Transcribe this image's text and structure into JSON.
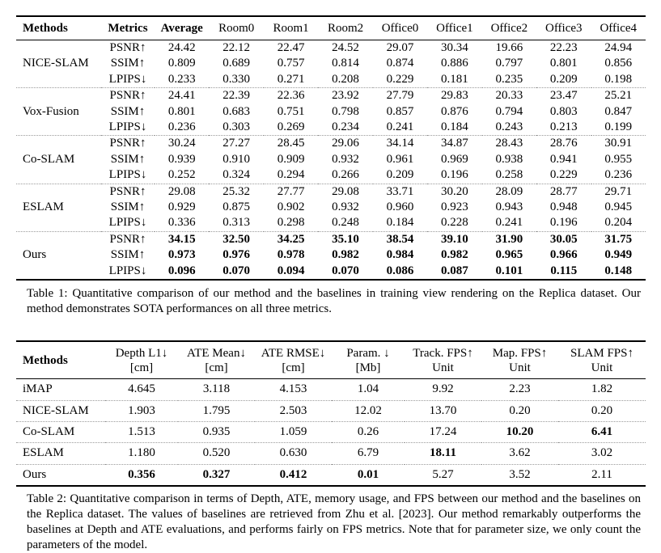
{
  "page": {
    "background": "#ffffff",
    "text_color": "#000000",
    "rule_color": "#000000",
    "dotted_rule_color": "#9a9a9a"
  },
  "chart_data": [
    {
      "type": "table",
      "title": "Table 1",
      "columns": [
        "Methods",
        "Metrics",
        "Average",
        "Room0",
        "Room1",
        "Room2",
        "Office0",
        "Office1",
        "Office2",
        "Office3",
        "Office4"
      ],
      "note": "rows grouped by method, three metric rows each; Ours values bold"
    },
    {
      "type": "table",
      "title": "Table 2",
      "columns": [
        "Methods",
        "Depth L1 [cm]",
        "ATE Mean [cm]",
        "ATE RMSE [cm]",
        "Param. [Mb]",
        "Track. FPS Unit",
        "Map. FPS Unit",
        "SLAM FPS Unit"
      ]
    }
  ],
  "table1": {
    "header": [
      {
        "label": "Methods",
        "bold": true
      },
      {
        "label": "Metrics",
        "bold": true
      },
      {
        "label": "Average",
        "bold": true
      },
      {
        "label": "Room0",
        "bold": false
      },
      {
        "label": "Room1",
        "bold": false
      },
      {
        "label": "Room2",
        "bold": false
      },
      {
        "label": "Office0",
        "bold": false
      },
      {
        "label": "Office1",
        "bold": false
      },
      {
        "label": "Office2",
        "bold": false
      },
      {
        "label": "Office3",
        "bold": false
      },
      {
        "label": "Office4",
        "bold": false
      }
    ],
    "groups": [
      {
        "method": "NICE-SLAM",
        "bold_values": false,
        "rows": [
          {
            "metric": "PSNR↑",
            "values": [
              "24.42",
              "22.12",
              "22.47",
              "24.52",
              "29.07",
              "30.34",
              "19.66",
              "22.23",
              "24.94"
            ]
          },
          {
            "metric": "SSIM↑",
            "values": [
              "0.809",
              "0.689",
              "0.757",
              "0.814",
              "0.874",
              "0.886",
              "0.797",
              "0.801",
              "0.856"
            ]
          },
          {
            "metric": "LPIPS↓",
            "values": [
              "0.233",
              "0.330",
              "0.271",
              "0.208",
              "0.229",
              "0.181",
              "0.235",
              "0.209",
              "0.198"
            ]
          }
        ]
      },
      {
        "method": "Vox-Fusion",
        "bold_values": false,
        "rows": [
          {
            "metric": "PSNR↑",
            "values": [
              "24.41",
              "22.39",
              "22.36",
              "23.92",
              "27.79",
              "29.83",
              "20.33",
              "23.47",
              "25.21"
            ]
          },
          {
            "metric": "SSIM↑",
            "values": [
              "0.801",
              "0.683",
              "0.751",
              "0.798",
              "0.857",
              "0.876",
              "0.794",
              "0.803",
              "0.847"
            ]
          },
          {
            "metric": "LPIPS↓",
            "values": [
              "0.236",
              "0.303",
              "0.269",
              "0.234",
              "0.241",
              "0.184",
              "0.243",
              "0.213",
              "0.199"
            ]
          }
        ]
      },
      {
        "method": "Co-SLAM",
        "bold_values": false,
        "rows": [
          {
            "metric": "PSNR↑",
            "values": [
              "30.24",
              "27.27",
              "28.45",
              "29.06",
              "34.14",
              "34.87",
              "28.43",
              "28.76",
              "30.91"
            ]
          },
          {
            "metric": "SSIM↑",
            "values": [
              "0.939",
              "0.910",
              "0.909",
              "0.932",
              "0.961",
              "0.969",
              "0.938",
              "0.941",
              "0.955"
            ]
          },
          {
            "metric": "LPIPS↓",
            "values": [
              "0.252",
              "0.324",
              "0.294",
              "0.266",
              "0.209",
              "0.196",
              "0.258",
              "0.229",
              "0.236"
            ]
          }
        ]
      },
      {
        "method": "ESLAM",
        "bold_values": false,
        "rows": [
          {
            "metric": "PSNR↑",
            "values": [
              "29.08",
              "25.32",
              "27.77",
              "29.08",
              "33.71",
              "30.20",
              "28.09",
              "28.77",
              "29.71"
            ]
          },
          {
            "metric": "SSIM↑",
            "values": [
              "0.929",
              "0.875",
              "0.902",
              "0.932",
              "0.960",
              "0.923",
              "0.943",
              "0.948",
              "0.945"
            ]
          },
          {
            "metric": "LPIPS↓",
            "values": [
              "0.336",
              "0.313",
              "0.298",
              "0.248",
              "0.184",
              "0.228",
              "0.241",
              "0.196",
              "0.204"
            ]
          }
        ]
      },
      {
        "method": "Ours",
        "bold_values": true,
        "rows": [
          {
            "metric": "PSNR↑",
            "values": [
              "34.15",
              "32.50",
              "34.25",
              "35.10",
              "38.54",
              "39.10",
              "31.90",
              "30.05",
              "31.75"
            ]
          },
          {
            "metric": "SSIM↑",
            "values": [
              "0.973",
              "0.976",
              "0.978",
              "0.982",
              "0.984",
              "0.982",
              "0.965",
              "0.966",
              "0.949"
            ]
          },
          {
            "metric": "LPIPS↓",
            "values": [
              "0.096",
              "0.070",
              "0.094",
              "0.070",
              "0.086",
              "0.087",
              "0.101",
              "0.115",
              "0.148"
            ]
          }
        ]
      }
    ],
    "caption": "Table 1: Quantitative comparison of our method and the baselines in training view rendering on the Replica dataset. Our method demonstrates SOTA performances on all three metrics."
  },
  "table2": {
    "header": [
      {
        "line1": "Methods",
        "line2": "",
        "bold": true
      },
      {
        "line1": "Depth L1↓",
        "line2": "[cm]",
        "bold": false
      },
      {
        "line1": "ATE Mean↓",
        "line2": "[cm]",
        "bold": false
      },
      {
        "line1": "ATE RMSE↓",
        "line2": "[cm]",
        "bold": false
      },
      {
        "line1": "Param. ↓",
        "line2": "[Mb]",
        "bold": false
      },
      {
        "line1": "Track. FPS↑",
        "line2": "Unit",
        "bold": false
      },
      {
        "line1": "Map. FPS↑",
        "line2": "Unit",
        "bold": false
      },
      {
        "line1": "SLAM FPS↑",
        "line2": "Unit",
        "bold": false
      }
    ],
    "rows": [
      {
        "method": "iMAP",
        "values": [
          "4.645",
          "3.118",
          "4.153",
          "1.04",
          "9.92",
          "2.23",
          "1.82"
        ],
        "bold_indices": []
      },
      {
        "method": "NICE-SLAM",
        "values": [
          "1.903",
          "1.795",
          "2.503",
          "12.02",
          "13.70",
          "0.20",
          "0.20"
        ],
        "bold_indices": []
      },
      {
        "method": "Co-SLAM",
        "values": [
          "1.513",
          "0.935",
          "1.059",
          "0.26",
          "17.24",
          "10.20",
          "6.41"
        ],
        "bold_indices": [
          5,
          6
        ]
      },
      {
        "method": "ESLAM",
        "values": [
          "1.180",
          "0.520",
          "0.630",
          "6.79",
          "18.11",
          "3.62",
          "3.02"
        ],
        "bold_indices": [
          4
        ]
      },
      {
        "method": "Ours",
        "values": [
          "0.356",
          "0.327",
          "0.412",
          "0.01",
          "5.27",
          "3.52",
          "2.11"
        ],
        "bold_indices": [
          0,
          1,
          2,
          3
        ]
      }
    ],
    "caption": "Table 2: Quantitative comparison in terms of Depth, ATE, memory usage, and FPS between our method and the baselines on the Replica dataset. The values of baselines are retrieved from Zhu et al. [2023]. Our method remarkably outperforms the baselines at Depth and ATE evaluations, and performs fairly on FPS metrics. Note that for parameter size, we only count the parameters of the model."
  }
}
